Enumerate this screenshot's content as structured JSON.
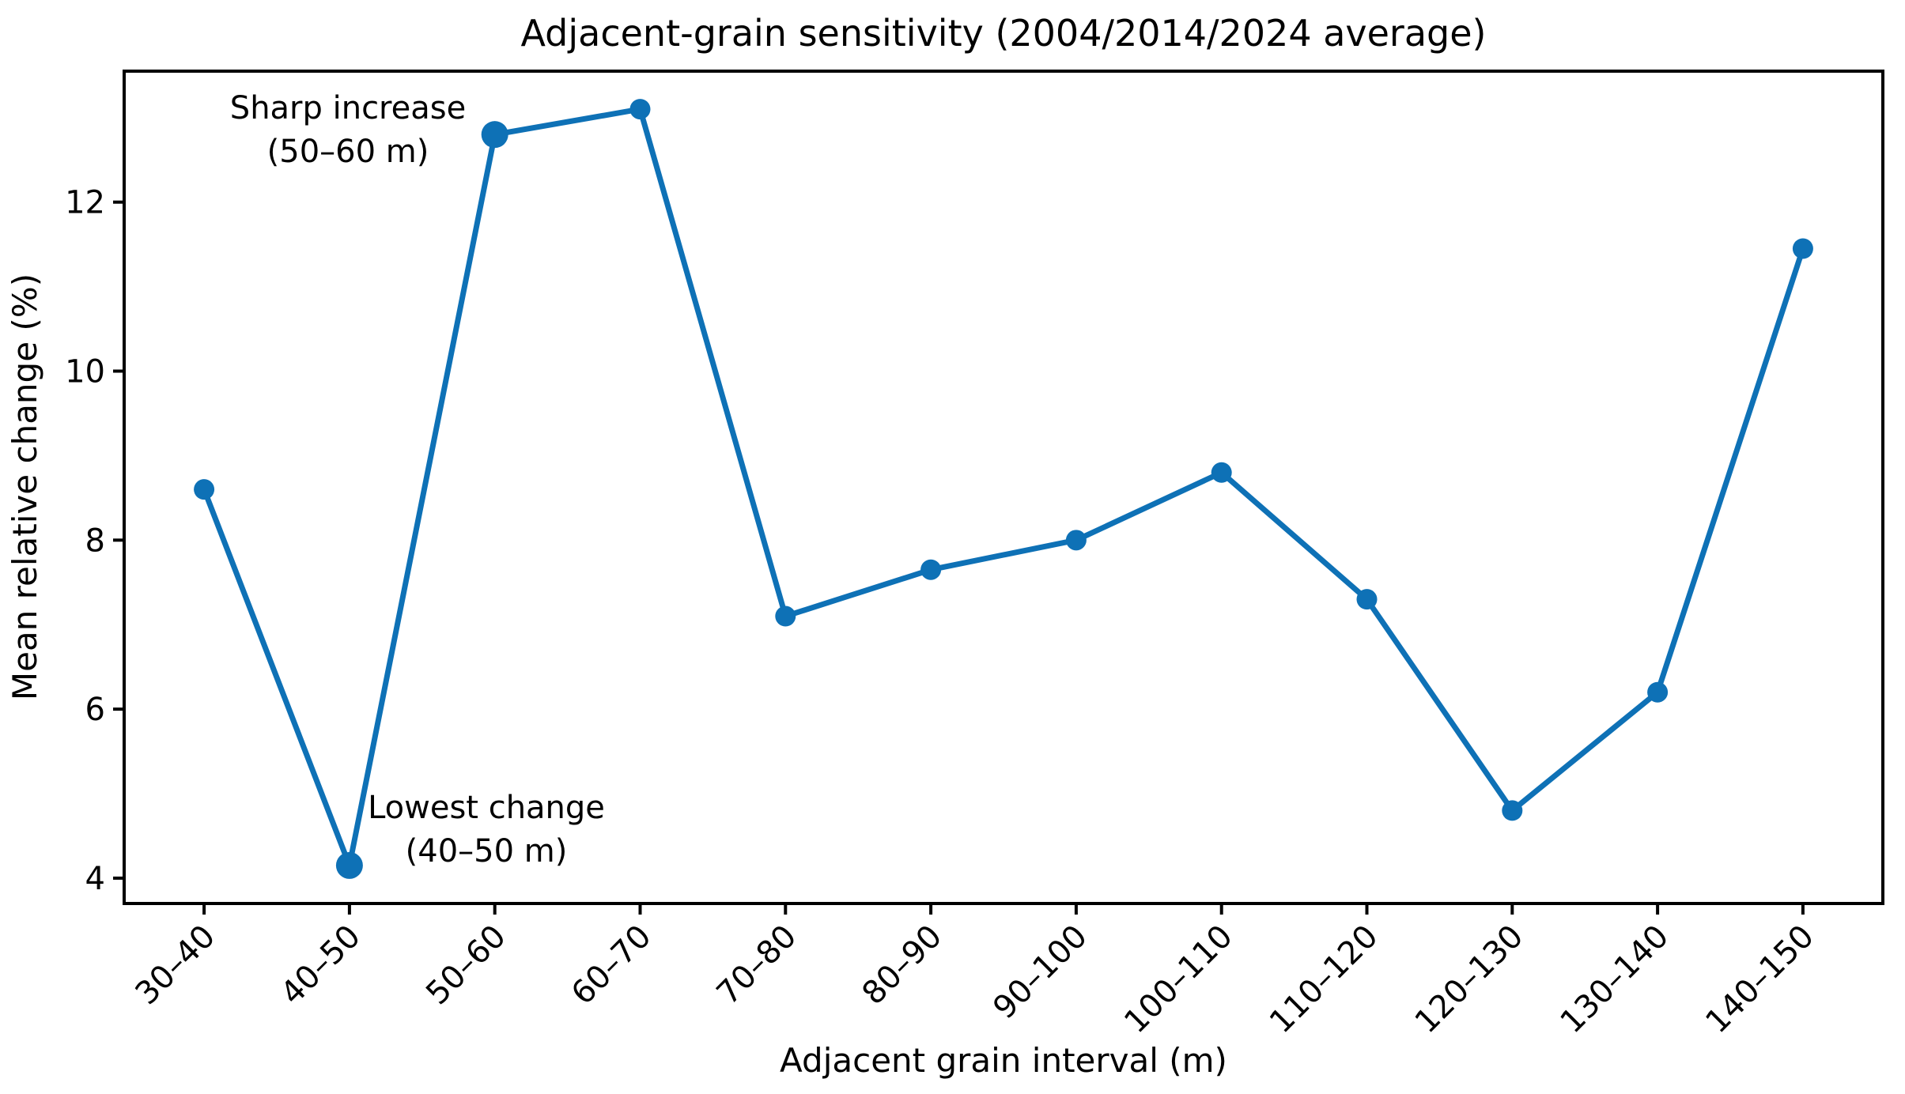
{
  "figure": {
    "background": "#ffffff"
  },
  "colors": {
    "line": "#0e71b6",
    "axis": "#000000",
    "text": "#000000"
  },
  "chart_data": {
    "type": "line",
    "title": "Adjacent-grain sensitivity (2004/2014/2024 average)",
    "xlabel": "Adjacent grain interval (m)",
    "ylabel": "Mean relative change (%)",
    "categories": [
      "30–40",
      "40–50",
      "50–60",
      "60–70",
      "70–80",
      "80–90",
      "90–100",
      "100–110",
      "110–120",
      "120–130",
      "130–140",
      "140–150"
    ],
    "values": [
      8.6,
      4.15,
      12.8,
      13.1,
      7.1,
      7.65,
      8.0,
      8.8,
      7.3,
      4.8,
      6.2,
      11.45
    ],
    "yticks": [
      4,
      6,
      8,
      10,
      12
    ],
    "ylim": [
      3.7,
      13.55
    ],
    "grid": false,
    "legend": null,
    "highlighted_indices": [
      1,
      2
    ],
    "annotations": [
      {
        "lines": [
          "Sharp increase",
          "(50–60 m)"
        ],
        "refers_to_category": "50–60"
      },
      {
        "lines": [
          "Lowest change",
          "(40–50 m)"
        ],
        "refers_to_category": "40–50"
      }
    ]
  }
}
